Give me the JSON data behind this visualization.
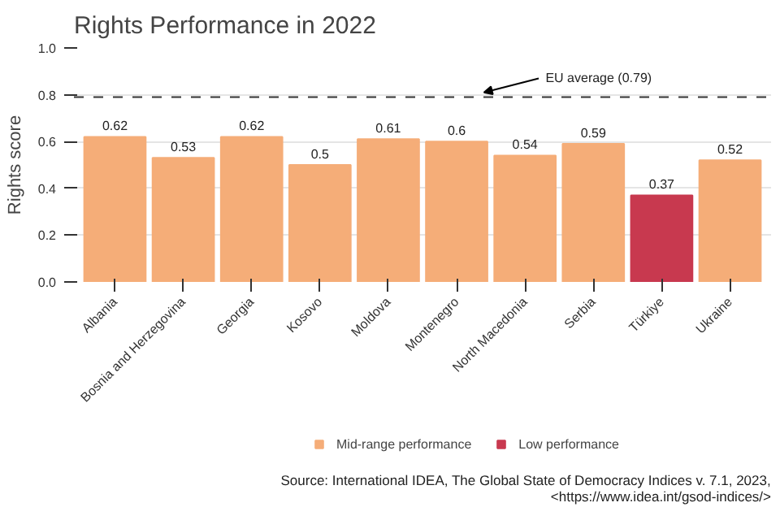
{
  "chart_data": {
    "type": "bar",
    "title": "Rights Performance in 2022",
    "ylabel": "Rights score",
    "categories": [
      "Albania",
      "Bosnia and Herzegovina",
      "Georgia",
      "Kosovo",
      "Moldova",
      "Montenegro",
      "North Macedonia",
      "Serbia",
      "Türkiye",
      "Ukraine"
    ],
    "series": [
      {
        "name": "Mid-range performance",
        "color": "#f5ad78",
        "values": [
          0.62,
          0.53,
          0.62,
          0.5,
          0.61,
          0.6,
          0.54,
          0.59,
          null,
          0.52
        ]
      },
      {
        "name": "Low performance",
        "color": "#c8394f",
        "values": [
          null,
          null,
          null,
          null,
          null,
          null,
          null,
          null,
          0.37,
          null
        ]
      }
    ],
    "ylim": [
      0,
      1.0
    ],
    "yticks": [
      {
        "value": 0,
        "label": "0.0"
      },
      0.2,
      0.4,
      0.6,
      0.8,
      {
        "value": 1,
        "label": "1.0"
      }
    ],
    "grid": "y",
    "legend": "bottom",
    "data_labels": true,
    "ref_lines": [
      {
        "axis": "y",
        "value": 0.79,
        "label": "EU average (0.79)",
        "line_style": "dashed",
        "color": "#333333"
      }
    ],
    "annotations": [
      "Source: International IDEA, The Global State of Democracy Indices v. 7.1, 2023,",
      "<https://www.idea.int/gsod-indices/>"
    ]
  }
}
